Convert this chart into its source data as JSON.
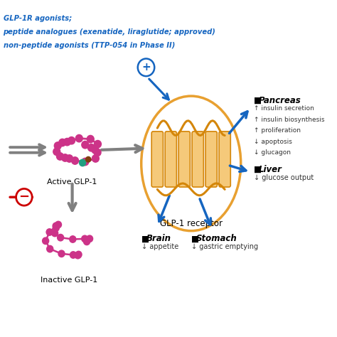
{
  "title_lines": [
    "GLP-1R agonists;",
    "peptide analogues (exenatide, liraglutide; approved)",
    "non-peptide agonists (TTP-054 in Phase II)"
  ],
  "label_active": "Active GLP-1",
  "label_inactive": "Inactive GLP-1",
  "label_receptor": "GLP-1 receptor",
  "blue_color": "#1565C0",
  "orange_color": "#D4860A",
  "orange_fill": "#F5C97A",
  "orange_ellipse": "#E8A030",
  "gray_color": "#808080",
  "red_color": "#CC0000",
  "pink_color": "#CC3388",
  "teal_color": "#20A080",
  "brown_color": "#804010",
  "text_dark": "#111111",
  "bg_white": "#FFFFFF",
  "pancreas_title": "Pancreas",
  "pancreas_items": [
    "↑ insulin secretion",
    "↑ insulin biosynthesis",
    "↑ proliferation",
    "↓ apoptosis",
    "↓ glucagon"
  ],
  "liver_title": "Liver",
  "liver_item": "↓ glucose output",
  "stomach_title": "Stomach",
  "stomach_item": "↓ gastric emptying",
  "brain_title": "Brain",
  "brain_item": "↓ appetite"
}
